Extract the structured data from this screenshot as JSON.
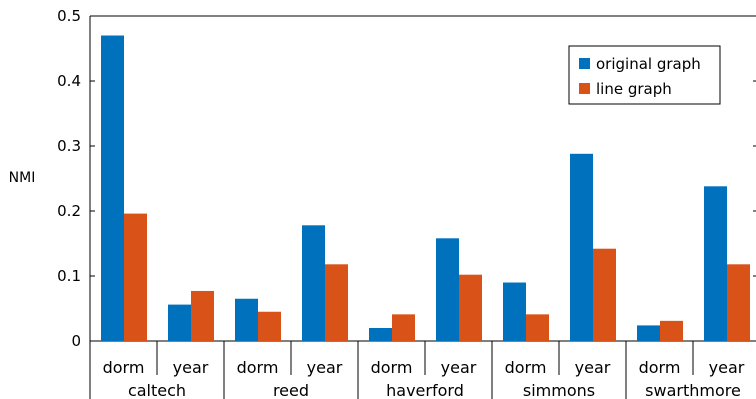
{
  "chart_data": {
    "type": "bar",
    "ylabel": "NMI",
    "ylim": [
      0,
      0.5
    ],
    "yticks": [
      0,
      0.1,
      0.2,
      0.3,
      0.4,
      0.5
    ],
    "groups": [
      "caltech",
      "reed",
      "haverford",
      "simmons",
      "swarthmore"
    ],
    "subcategories": [
      "dorm",
      "year"
    ],
    "categories": [
      "dorm",
      "year",
      "dorm",
      "year",
      "dorm",
      "year",
      "dorm",
      "year",
      "dorm",
      "year"
    ],
    "series": [
      {
        "name": "original graph",
        "color": "#0072bd",
        "values": [
          0.47,
          0.056,
          0.065,
          0.178,
          0.02,
          0.158,
          0.09,
          0.288,
          0.024,
          0.238
        ]
      },
      {
        "name": "line graph",
        "color": "#d95319",
        "values": [
          0.196,
          0.077,
          0.045,
          0.118,
          0.041,
          0.102,
          0.041,
          0.142,
          0.031,
          0.118
        ]
      }
    ],
    "legend": "top-right",
    "grid": false
  }
}
